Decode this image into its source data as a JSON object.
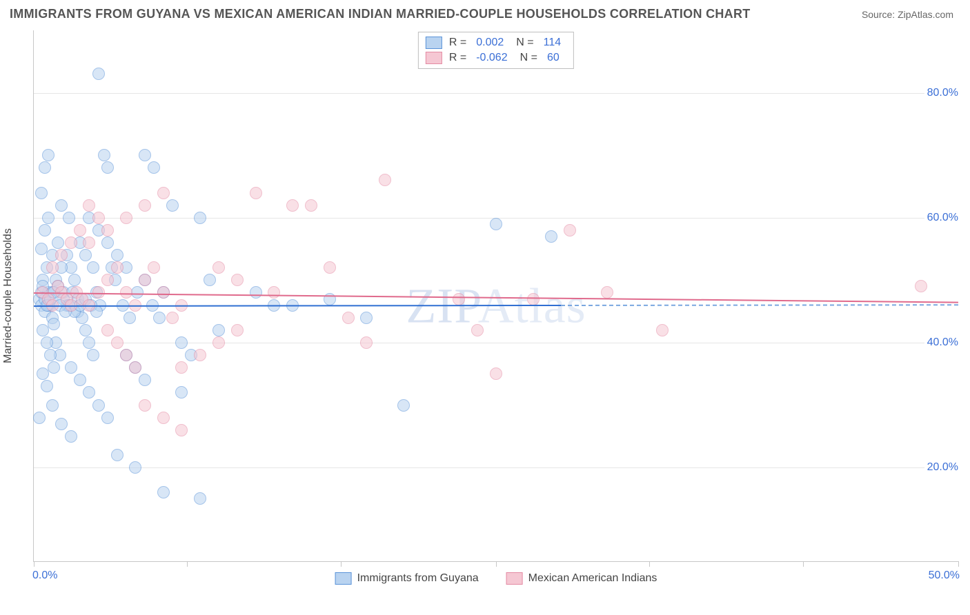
{
  "title": "IMMIGRANTS FROM GUYANA VS MEXICAN AMERICAN INDIAN MARRIED-COUPLE HOUSEHOLDS CORRELATION CHART",
  "source": "Source: ZipAtlas.com",
  "watermark_a": "ZIP",
  "watermark_b": "Atlas",
  "chart": {
    "type": "scatter",
    "background_color": "#ffffff",
    "grid_color": "#e6e6e6",
    "axis_color": "#c7c7c7",
    "label_color": "#3b6fd6",
    "xlim": [
      0,
      50
    ],
    "ylim": [
      5,
      90
    ],
    "xticks_pos": [
      0,
      8.3,
      16.6,
      25,
      33.3,
      41.6,
      50
    ],
    "x_axis_min_label": "0.0%",
    "x_axis_max_label": "50.0%",
    "yticks": [
      20,
      40,
      60,
      80
    ],
    "ytick_labels": [
      "20.0%",
      "40.0%",
      "60.0%",
      "80.0%"
    ],
    "y_axis_title": "Married-couple Households",
    "marker_radius": 9,
    "marker_border_width": 1.2,
    "series": [
      {
        "name": "Immigrants from Guyana",
        "fill": "#b9d3f0",
        "stroke": "#5a93d8",
        "fill_opacity": 0.55,
        "r_value": "0.002",
        "n_value": "114",
        "trend": {
          "y_start": 46.0,
          "y_end": 46.2,
          "x_solid_end": 28.5,
          "solid_color": "#2f6fd2",
          "dash_color": "#7aa7e0",
          "width": 2
        },
        "points": [
          [
            3.5,
            83
          ],
          [
            0.3,
            47
          ],
          [
            0.4,
            46
          ],
          [
            0.6,
            45
          ],
          [
            0.8,
            48
          ],
          [
            1.0,
            44
          ],
          [
            0.5,
            50
          ],
          [
            0.7,
            52
          ],
          [
            0.9,
            46
          ],
          [
            1.1,
            43
          ],
          [
            0.4,
            55
          ],
          [
            0.6,
            58
          ],
          [
            0.8,
            60
          ],
          [
            1.2,
            40
          ],
          [
            1.4,
            38
          ],
          [
            0.5,
            35
          ],
          [
            0.7,
            33
          ],
          [
            0.3,
            28
          ],
          [
            1.0,
            54
          ],
          [
            1.3,
            56
          ],
          [
            1.6,
            48
          ],
          [
            1.8,
            46
          ],
          [
            2.0,
            52
          ],
          [
            2.2,
            50
          ],
          [
            2.4,
            45
          ],
          [
            0.4,
            64
          ],
          [
            0.6,
            68
          ],
          [
            0.8,
            70
          ],
          [
            1.5,
            62
          ],
          [
            1.9,
            60
          ],
          [
            2.6,
            44
          ],
          [
            2.8,
            42
          ],
          [
            3.0,
            40
          ],
          [
            3.2,
            38
          ],
          [
            0.5,
            42
          ],
          [
            0.7,
            40
          ],
          [
            0.9,
            38
          ],
          [
            1.1,
            36
          ],
          [
            3.8,
            70
          ],
          [
            4.0,
            68
          ],
          [
            3.4,
            48
          ],
          [
            3.6,
            46
          ],
          [
            4.2,
            52
          ],
          [
            4.4,
            50
          ],
          [
            4.8,
            46
          ],
          [
            5.2,
            44
          ],
          [
            5.6,
            48
          ],
          [
            6.0,
            50
          ],
          [
            6.4,
            46
          ],
          [
            6.8,
            44
          ],
          [
            3.0,
            60
          ],
          [
            3.5,
            58
          ],
          [
            4.0,
            56
          ],
          [
            4.5,
            54
          ],
          [
            5.0,
            52
          ],
          [
            2.0,
            36
          ],
          [
            2.5,
            34
          ],
          [
            3.0,
            32
          ],
          [
            3.5,
            30
          ],
          [
            4.0,
            28
          ],
          [
            5.0,
            38
          ],
          [
            5.5,
            36
          ],
          [
            6.0,
            34
          ],
          [
            7.0,
            48
          ],
          [
            7.5,
            62
          ],
          [
            8.0,
            40
          ],
          [
            8.5,
            38
          ],
          [
            9.0,
            60
          ],
          [
            9.5,
            50
          ],
          [
            10.0,
            42
          ],
          [
            6.0,
            70
          ],
          [
            6.5,
            68
          ],
          [
            2.5,
            56
          ],
          [
            2.8,
            54
          ],
          [
            3.2,
            52
          ],
          [
            1.0,
            30
          ],
          [
            1.5,
            27
          ],
          [
            2.0,
            25
          ],
          [
            4.5,
            22
          ],
          [
            5.5,
            20
          ],
          [
            7.0,
            16
          ],
          [
            8.0,
            32
          ],
          [
            9.0,
            15
          ],
          [
            12.0,
            48
          ],
          [
            13.0,
            46
          ],
          [
            14.0,
            46
          ],
          [
            16.0,
            47
          ],
          [
            18.0,
            44
          ],
          [
            20.0,
            30
          ],
          [
            25.0,
            59
          ],
          [
            28.0,
            57
          ],
          [
            1.2,
            50
          ],
          [
            1.5,
            52
          ],
          [
            1.8,
            54
          ],
          [
            2.1,
            48
          ],
          [
            2.4,
            47
          ],
          [
            0.6,
            47
          ],
          [
            0.8,
            46
          ],
          [
            1.0,
            48
          ],
          [
            1.3,
            49
          ],
          [
            1.6,
            47
          ],
          [
            1.9,
            46
          ],
          [
            2.2,
            45
          ],
          [
            2.5,
            46
          ],
          [
            2.8,
            47
          ],
          [
            3.1,
            46
          ],
          [
            3.4,
            45
          ],
          [
            0.4,
            48
          ],
          [
            0.5,
            49
          ],
          [
            0.7,
            46
          ],
          [
            0.9,
            47
          ],
          [
            1.1,
            48
          ],
          [
            1.4,
            46
          ],
          [
            1.7,
            45
          ]
        ]
      },
      {
        "name": "Mexican American Indians",
        "fill": "#f5c7d3",
        "stroke": "#e48aa3",
        "fill_opacity": 0.55,
        "r_value": "-0.062",
        "n_value": "60",
        "trend": {
          "y_start": 48.0,
          "y_end": 46.5,
          "x_solid_end": 50,
          "solid_color": "#e06a8c",
          "dash_color": "#e06a8c",
          "width": 2
        },
        "points": [
          [
            0.5,
            48
          ],
          [
            0.8,
            47
          ],
          [
            1.0,
            46
          ],
          [
            1.3,
            49
          ],
          [
            1.5,
            48
          ],
          [
            1.8,
            47
          ],
          [
            2.0,
            46
          ],
          [
            2.3,
            48
          ],
          [
            2.6,
            47
          ],
          [
            3.0,
            46
          ],
          [
            3.5,
            48
          ],
          [
            4.0,
            50
          ],
          [
            4.5,
            52
          ],
          [
            5.0,
            48
          ],
          [
            5.5,
            46
          ],
          [
            6.0,
            50
          ],
          [
            6.5,
            52
          ],
          [
            7.0,
            48
          ],
          [
            7.5,
            44
          ],
          [
            8.0,
            46
          ],
          [
            3.0,
            56
          ],
          [
            4.0,
            58
          ],
          [
            5.0,
            60
          ],
          [
            6.0,
            62
          ],
          [
            7.0,
            64
          ],
          [
            10.0,
            52
          ],
          [
            11.0,
            50
          ],
          [
            12.0,
            64
          ],
          [
            13.0,
            48
          ],
          [
            14.0,
            62
          ],
          [
            15.0,
            62
          ],
          [
            16.0,
            52
          ],
          [
            17.0,
            44
          ],
          [
            18.0,
            40
          ],
          [
            19.0,
            66
          ],
          [
            8.0,
            36
          ],
          [
            9.0,
            38
          ],
          [
            10.0,
            40
          ],
          [
            11.0,
            42
          ],
          [
            23.0,
            47
          ],
          [
            24.0,
            42
          ],
          [
            25.0,
            35
          ],
          [
            27.0,
            47
          ],
          [
            29.0,
            58
          ],
          [
            31.0,
            48
          ],
          [
            34.0,
            42
          ],
          [
            48.0,
            49
          ],
          [
            1.0,
            52
          ],
          [
            1.5,
            54
          ],
          [
            2.0,
            56
          ],
          [
            2.5,
            58
          ],
          [
            3.0,
            62
          ],
          [
            3.5,
            60
          ],
          [
            4.0,
            42
          ],
          [
            4.5,
            40
          ],
          [
            5.0,
            38
          ],
          [
            5.5,
            36
          ],
          [
            6.0,
            30
          ],
          [
            7.0,
            28
          ],
          [
            8.0,
            26
          ]
        ]
      }
    ],
    "corr_legend_labels": {
      "r": "R =",
      "n": "N ="
    },
    "bottom_legend_labels": [
      "Immigrants from Guyana",
      "Mexican American Indians"
    ]
  }
}
